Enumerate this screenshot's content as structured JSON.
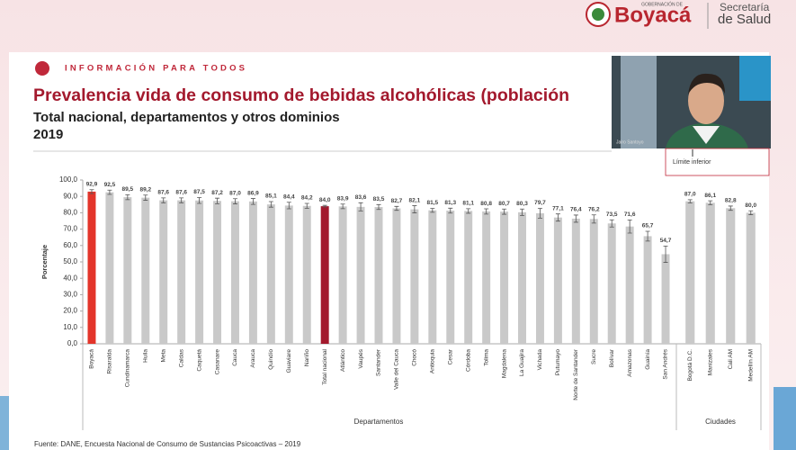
{
  "page": {
    "logo_small": "GOBERNACIÓN DE",
    "logo_name": "Boyacá",
    "dept_line1": "Secretaría",
    "dept_line2": "de Salud",
    "kicker": "INFORMACIÓN PARA TODOS",
    "webcam_name": "Jairo Santoyo",
    "legend_snippet": "Límite inferior",
    "source": "Fuente: DANE, Encuesta Nacional de Consumo de Sustancias Psicoactivas – 2019"
  },
  "chart_data": {
    "type": "bar",
    "title": "Prevalencia vida de consumo de bebidas alcohólicas (población",
    "subtitle": "Total nacional, departamentos y otros dominios",
    "year": "2019",
    "y_label": "Porcentaje",
    "ylim": [
      0,
      100
    ],
    "yticks": [
      {
        "value": 0,
        "label": "0,0"
      },
      {
        "value": 10,
        "label": "10,0"
      },
      {
        "value": 20,
        "label": "20,0"
      },
      {
        "value": 30,
        "label": "30,0"
      },
      {
        "value": 40,
        "label": "40,0"
      },
      {
        "value": 50,
        "label": "50,0"
      },
      {
        "value": 60,
        "label": "60,0"
      },
      {
        "value": 70,
        "label": "70,0"
      },
      {
        "value": 80,
        "label": "80,0"
      },
      {
        "value": 90,
        "label": "90,0"
      },
      {
        "value": 100,
        "label": "100,0"
      }
    ],
    "groups": [
      {
        "name": "Departamentos",
        "categories": [
          "Boyacá",
          "Risaralda",
          "Cundinamarca",
          "Huila",
          "Meta",
          "Caldas",
          "Caquetá",
          "Casanare",
          "Cauca",
          "Arauca",
          "Quindío",
          "Guaviare",
          "Nariño",
          "Total nacional",
          "Atlántico",
          "Vaupés",
          "Santander",
          "Valle del Cauca",
          "Chocó",
          "Antioquia",
          "Cesar",
          "Córdoba",
          "Tolima",
          "Magdalena",
          "La Guajira",
          "Vichada",
          "Putumayo",
          "Norte de Santander",
          "Sucre",
          "Bolívar",
          "Amazonas",
          "Guainía",
          "San Andrés"
        ],
        "values": [
          92.9,
          92.5,
          89.5,
          89.2,
          87.6,
          87.6,
          87.5,
          87.2,
          87.0,
          86.9,
          85.1,
          84.4,
          84.2,
          84.0,
          83.9,
          83.6,
          83.5,
          82.7,
          82.1,
          81.5,
          81.3,
          81.1,
          80.8,
          80.7,
          80.3,
          79.7,
          77.1,
          76.4,
          76.2,
          73.5,
          71.6,
          65.7,
          54.7
        ],
        "value_labels": [
          "92,9",
          "92,5",
          "89,5",
          "89,2",
          "87,6",
          "87,6",
          "87,5",
          "87,2",
          "87,0",
          "86,9",
          "85,1",
          "84,4",
          "84,2",
          "84,0",
          "83,9",
          "83,6",
          "83,5",
          "82,7",
          "82,1",
          "81,5",
          "81,3",
          "81,1",
          "80,8",
          "80,7",
          "80,3",
          "79,7",
          "77,1",
          "76,4",
          "76,2",
          "73,5",
          "71,6",
          "65,7",
          "54,7"
        ],
        "errors": [
          1.2,
          1.3,
          1.5,
          1.6,
          1.5,
          1.5,
          1.8,
          1.7,
          1.6,
          1.8,
          1.7,
          2.0,
          1.5,
          0.5,
          1.4,
          2.5,
          1.5,
          1.2,
          2.2,
          1.2,
          1.5,
          1.4,
          1.6,
          1.6,
          2.0,
          3.0,
          2.2,
          2.2,
          2.5,
          2.2,
          4.0,
          3.0,
          5.0
        ],
        "colors": [
          "#e3342a",
          "#c9c9c9",
          "#c9c9c9",
          "#c9c9c9",
          "#c9c9c9",
          "#c9c9c9",
          "#c9c9c9",
          "#c9c9c9",
          "#c9c9c9",
          "#c9c9c9",
          "#c9c9c9",
          "#c9c9c9",
          "#c9c9c9",
          "#a3192d",
          "#c9c9c9",
          "#c9c9c9",
          "#c9c9c9",
          "#c9c9c9",
          "#c9c9c9",
          "#c9c9c9",
          "#c9c9c9",
          "#c9c9c9",
          "#c9c9c9",
          "#c9c9c9",
          "#c9c9c9",
          "#c9c9c9",
          "#c9c9c9",
          "#c9c9c9",
          "#c9c9c9",
          "#c9c9c9",
          "#c9c9c9",
          "#c9c9c9",
          "#c9c9c9"
        ]
      },
      {
        "name": "Ciudades",
        "categories": [
          "Bogotá D.C.",
          "Manizales",
          "Cali AM",
          "Medellín AM"
        ],
        "values": [
          87.0,
          86.1,
          82.8,
          80.0
        ],
        "value_labels": [
          "87,0",
          "86,1",
          "82,8",
          "80,0"
        ],
        "errors": [
          1.0,
          1.2,
          1.3,
          1.2
        ],
        "colors": [
          "#c9c9c9",
          "#c9c9c9",
          "#c9c9c9",
          "#c9c9c9"
        ]
      }
    ]
  }
}
